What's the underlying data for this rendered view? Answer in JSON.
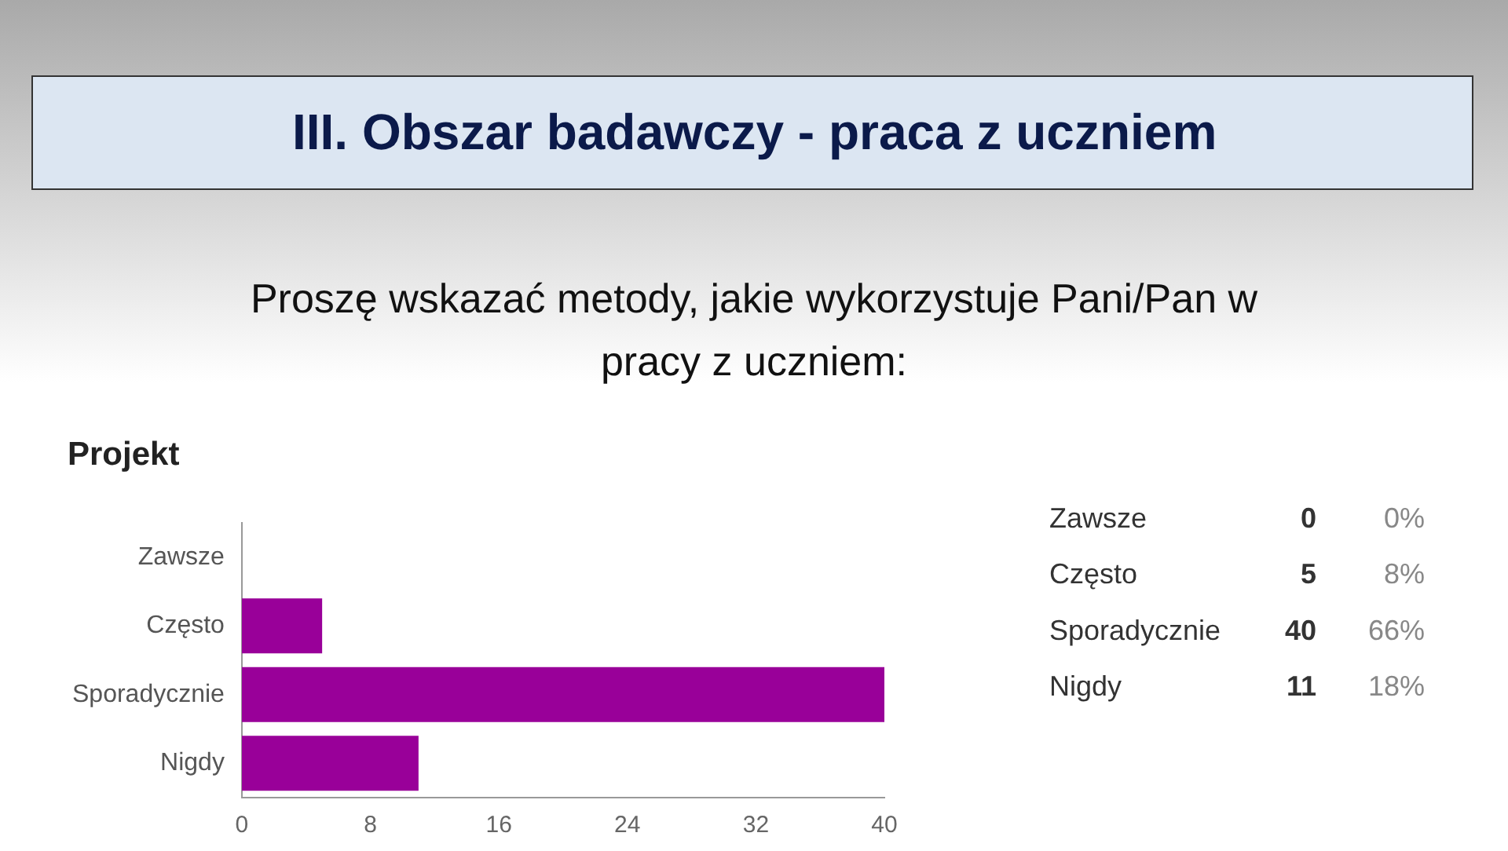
{
  "chart_data": {
    "type": "bar",
    "orientation": "horizontal",
    "title": "III. Obszar badawczy - praca z uczniem",
    "subtitle": "Proszę wskazać metody, jakie wykorzystuje Pani/Pan w pracy z uczniem:",
    "categories": [
      "Zawsze",
      "Często",
      "Sporadycznie",
      "Nigdy"
    ],
    "values": [
      0,
      5,
      40,
      11
    ],
    "color": "#990099",
    "xlim": [
      0,
      40
    ],
    "xticks": [
      0,
      8,
      16,
      24,
      32,
      40
    ],
    "grid": false,
    "legend": false,
    "annotations": [
      "Projekt",
      "0",
      "0%",
      "5",
      "8%",
      "40",
      "66%",
      "11",
      "18%"
    ]
  }
}
